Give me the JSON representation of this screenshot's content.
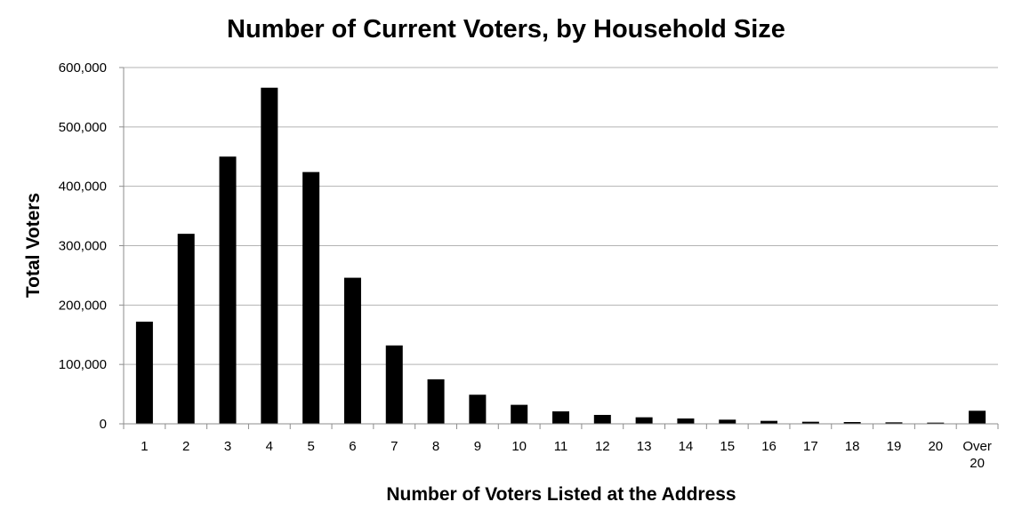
{
  "chart_data": {
    "type": "bar",
    "title": "Number of Current Voters, by Household Size",
    "xlabel": "Number of Voters Listed at the Address",
    "ylabel": "Total Voters",
    "categories": [
      "1",
      "2",
      "3",
      "4",
      "5",
      "6",
      "7",
      "8",
      "9",
      "10",
      "11",
      "12",
      "13",
      "14",
      "15",
      "16",
      "17",
      "18",
      "19",
      "20",
      "Over 20"
    ],
    "values": [
      172000,
      320000,
      450000,
      566000,
      424000,
      246000,
      132000,
      75000,
      49000,
      32000,
      21000,
      15000,
      11000,
      9000,
      7000,
      5000,
      3500,
      3000,
      2500,
      2000,
      22000
    ],
    "ylim": [
      0,
      600000
    ],
    "yticks": [
      "0",
      "100,000",
      "200,000",
      "300,000",
      "400,000",
      "500,000",
      "600,000"
    ],
    "grid": true,
    "legend": "none",
    "bar_color": "#000000"
  }
}
